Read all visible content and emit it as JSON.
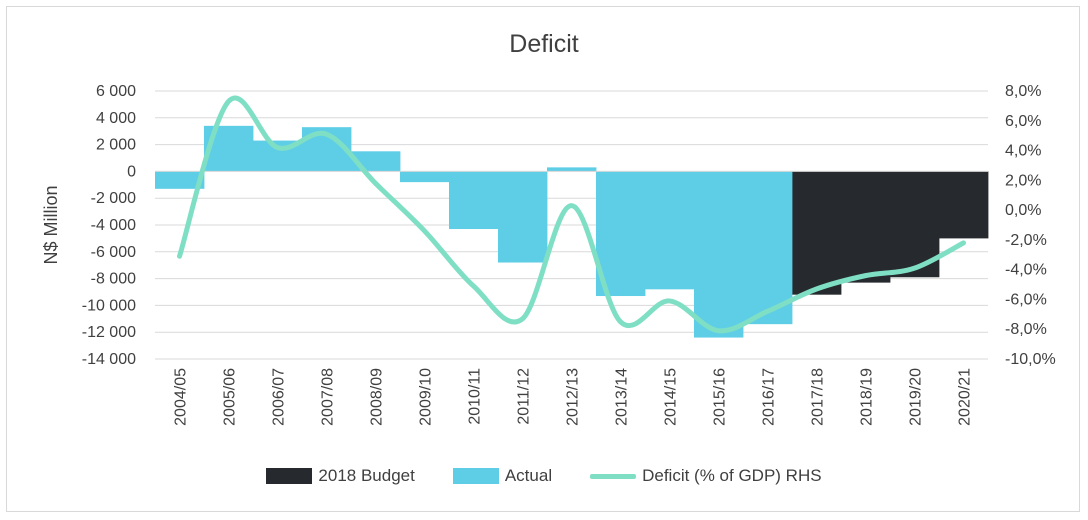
{
  "chart_data": {
    "type": "bar",
    "title": "Deficit",
    "ylabel": "N$ Million",
    "ylim": [
      -14000,
      6000
    ],
    "y2lim": [
      -10.0,
      8.0
    ],
    "yticks": [
      "6 000",
      "4 000",
      "2 000",
      "0",
      "-2 000",
      "-4 000",
      "-6 000",
      "-8 000",
      "-10 000",
      "-12 000",
      "-14 000"
    ],
    "y2ticks": [
      "8,0%",
      "6,0%",
      "4,0%",
      "2,0%",
      "0,0%",
      "-2,0%",
      "-4,0%",
      "-6,0%",
      "-8,0%",
      "-10,0%"
    ],
    "categories": [
      "2004/05",
      "2005/06",
      "2006/07",
      "2007/08",
      "2008/09",
      "2009/10",
      "2010/11",
      "2011/12",
      "2012/13",
      "2013/14",
      "2014/15",
      "2015/16",
      "2016/17",
      "2017/18",
      "2018/19",
      "2019/20",
      "2020/21"
    ],
    "series": [
      {
        "name": "2018 Budget",
        "kind": "bar",
        "color": "#262a2e",
        "values": [
          null,
          null,
          null,
          null,
          null,
          null,
          null,
          null,
          null,
          null,
          null,
          null,
          null,
          -9200,
          -8300,
          -7900,
          -5000
        ]
      },
      {
        "name": "Actual",
        "kind": "bar",
        "color": "#5ecde6",
        "values": [
          -1300,
          3400,
          2300,
          3300,
          1500,
          -800,
          -4300,
          -6800,
          300,
          -9300,
          -8800,
          -12400,
          -11400,
          null,
          null,
          null,
          null
        ]
      },
      {
        "name": "Deficit (% of GDP) RHS",
        "kind": "line",
        "axis": "right",
        "color": "#7fdfc4",
        "values": [
          -3.1,
          7.3,
          4.2,
          5.1,
          1.8,
          -1.4,
          -5.1,
          -7.3,
          0.3,
          -7.5,
          -6.1,
          -8.1,
          -6.8,
          -5.3,
          -4.4,
          -3.9,
          -2.2
        ]
      }
    ],
    "grid": true,
    "legend": "bottom"
  }
}
